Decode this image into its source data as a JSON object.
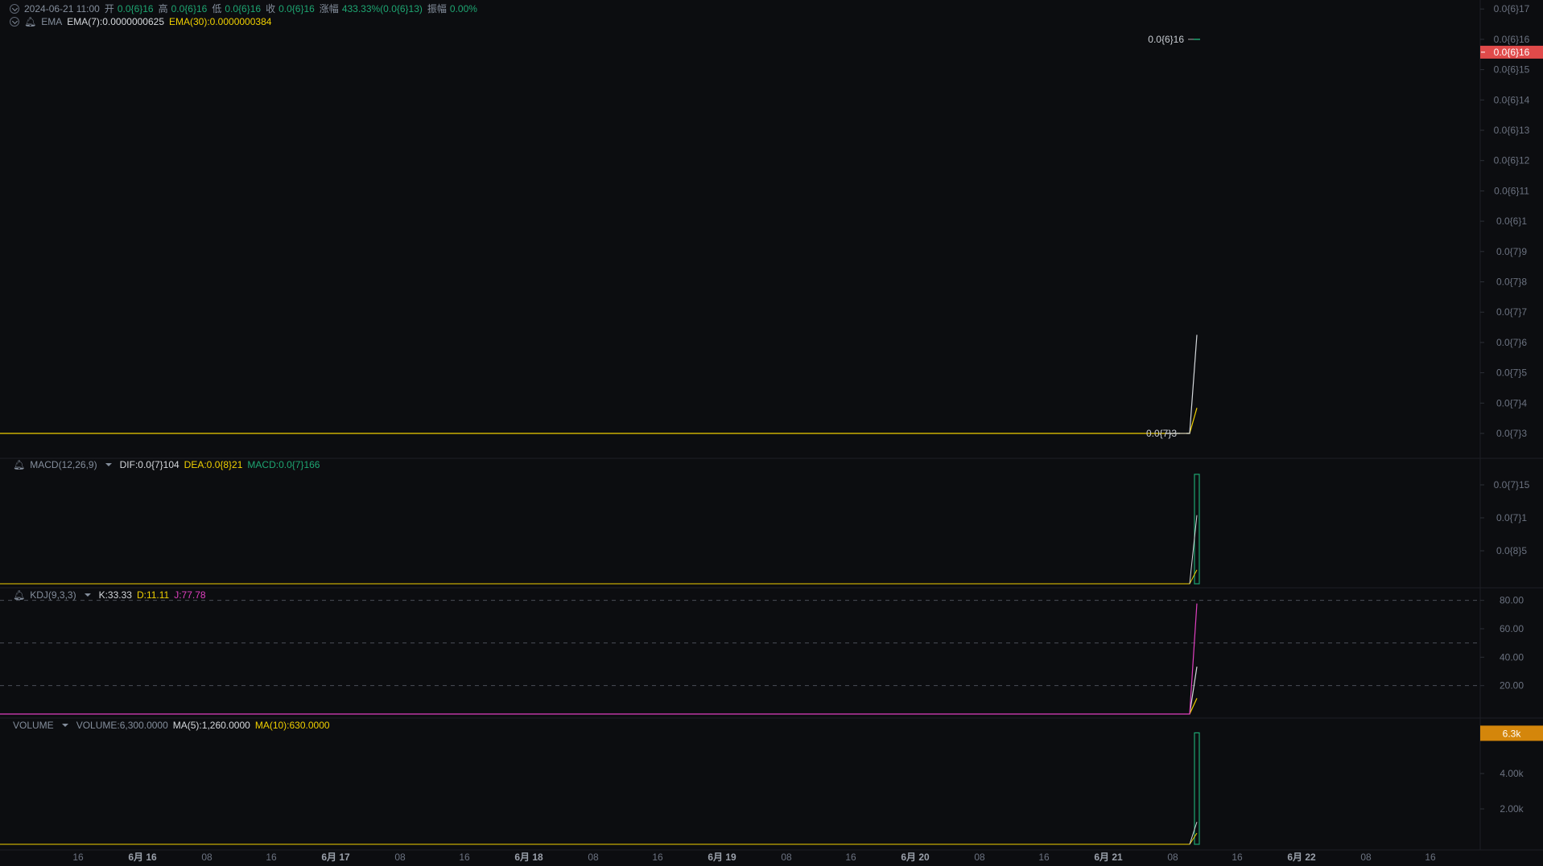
{
  "header": {
    "datetime": "2024-06-21 11:00",
    "open_label": "开",
    "open": "0.0{6}16",
    "high_label": "高",
    "high": "0.0{6}16",
    "low_label": "低",
    "low": "0.0{6}16",
    "close_label": "收",
    "close": "0.0{6}16",
    "change_label": "涨幅",
    "change": "433.33%(0.0{6}13)",
    "amplitude_label": "振幅",
    "amplitude": "0.00%"
  },
  "ema_legend": {
    "name": "EMA",
    "ema7": "EMA(7):0.0000000625",
    "ema30": "EMA(30):0.0000000384"
  },
  "macd_legend": {
    "name": "MACD(12,26,9)",
    "dif": "DIF:0.0{7}104",
    "dea": "DEA:0.0{8}21",
    "macd": "MACD:0.0{7}166"
  },
  "kdj_legend": {
    "name": "KDJ(9,3,3)",
    "k": "K:33.33",
    "d": "D:11.11",
    "j": "J:77.78"
  },
  "volume_legend": {
    "name": "VOLUME",
    "volume": "VOLUME:6,300.0000",
    "ma5": "MA(5):1,260.0000",
    "ma10": "MA(10):630.0000"
  },
  "colors": {
    "background": "#0c0d10",
    "up": "#1ea672",
    "last_price_badge": "#e04a4a",
    "volume_badge": "#d4860b",
    "ema7": "#d5d8dc",
    "ema30": "#f0d000",
    "j_line": "#e040c0"
  },
  "chart_data": [
    {
      "type": "line",
      "pane": "price",
      "x": [
        "2024-06-21 10:00",
        "2024-06-21 11:00"
      ],
      "candle_last": {
        "open": 1.6e-07,
        "high": 1.6e-07,
        "low": 1.6e-07,
        "close": 1.6e-07
      },
      "series": [
        {
          "name": "EMA(7)",
          "values": [
            3e-08,
            6.25e-08
          ]
        },
        {
          "name": "EMA(30)",
          "values": [
            3e-08,
            3.84e-08
          ]
        }
      ],
      "y_ticks": [
        "0.0{6}17",
        "0.0{6}16",
        "0.0{6}15",
        "0.0{6}14",
        "0.0{6}13",
        "0.0{6}12",
        "0.0{6}11",
        "0.0{6}1",
        "0.0{7}9",
        "0.0{7}8",
        "0.0{7}7",
        "0.0{7}6",
        "0.0{7}5",
        "0.0{7}4",
        "0.0{7}3"
      ],
      "y_tick_values": [
        1.7e-07,
        1.6e-07,
        1.5e-07,
        1.4e-07,
        1.3e-07,
        1.2e-07,
        1.1e-07,
        1e-07,
        9e-08,
        8e-08,
        7e-08,
        6e-08,
        5e-08,
        4e-08,
        3e-08
      ],
      "last_price_label": "0.0{6}16",
      "max_marker": "0.0{6}16",
      "min_marker": "0.0{7}3"
    },
    {
      "type": "bar",
      "pane": "macd",
      "macd_last": 1.66e-08,
      "series": [
        {
          "name": "DIF",
          "values": [
            0,
            1.04e-08
          ]
        },
        {
          "name": "DEA",
          "values": [
            0,
            2.1e-09
          ]
        }
      ],
      "y_ticks": [
        "0.0{7}15",
        "0.0{7}1",
        "0.0{8}5"
      ],
      "y_tick_values": [
        1.5e-08,
        1e-08,
        5e-09
      ]
    },
    {
      "type": "line",
      "pane": "kdj",
      "series": [
        {
          "name": "K",
          "values": [
            0,
            33.33
          ]
        },
        {
          "name": "D",
          "values": [
            0,
            11.11
          ]
        },
        {
          "name": "J",
          "values": [
            0,
            77.78
          ]
        }
      ],
      "y_ticks": [
        "80.00",
        "60.00",
        "40.00",
        "20.00"
      ],
      "y_tick_values": [
        80,
        60,
        40,
        20
      ],
      "dashed_levels": [
        80,
        50,
        20
      ]
    },
    {
      "type": "bar",
      "pane": "volume",
      "volume_last": 6300,
      "series": [
        {
          "name": "MA(5)",
          "values": [
            0,
            1260
          ]
        },
        {
          "name": "MA(10)",
          "values": [
            0,
            630
          ]
        }
      ],
      "y_ticks": [
        "4.00k",
        "2.00k"
      ],
      "y_tick_values": [
        4000,
        2000
      ],
      "last_volume_label": "6.3k"
    }
  ],
  "time_axis": [
    "16",
    "6月 16",
    "08",
    "16",
    "6月 17",
    "08",
    "16",
    "6月 18",
    "08",
    "16",
    "6月 19",
    "08",
    "16",
    "6月 20",
    "08",
    "16",
    "6月 21",
    "08",
    "16",
    "6月 22",
    "08",
    "16"
  ]
}
